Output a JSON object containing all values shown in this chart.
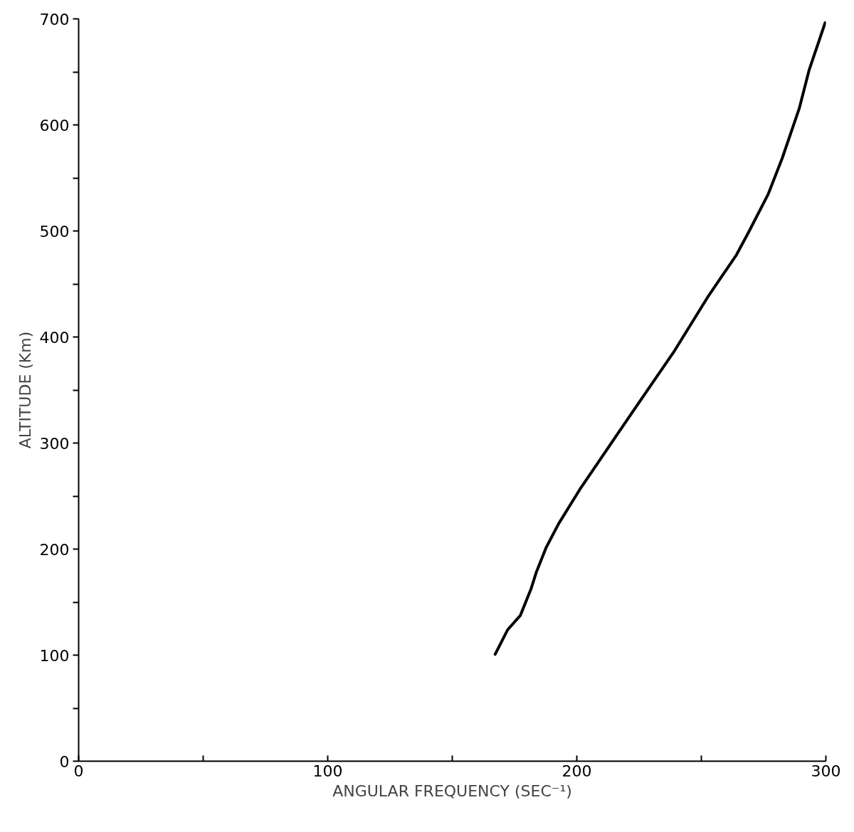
{
  "chart_data": {
    "type": "line",
    "xlabel": "ANGULAR FREQUENCY (SEC⁻¹)",
    "ylabel": "ALTITUDE (Km)",
    "xlim": [
      0,
      300
    ],
    "ylim": [
      0,
      700
    ],
    "xticks": [
      0,
      {
        "value": 50,
        "label": null
      },
      100,
      {
        "value": 150,
        "label": null
      },
      200,
      {
        "value": 250,
        "label": null
      },
      300
    ],
    "yticks": [
      0,
      {
        "value": 50,
        "label": null
      },
      100,
      {
        "value": 150,
        "label": null
      },
      200,
      {
        "value": 250,
        "label": null
      },
      300,
      {
        "value": 350,
        "label": null
      },
      400,
      {
        "value": 450,
        "label": null
      },
      500,
      {
        "value": 550,
        "label": null
      },
      600,
      {
        "value": 650,
        "label": null
      },
      700
    ],
    "grid": false,
    "marker": "none",
    "line_style": "solid",
    "series": [
      {
        "color": "#000000",
        "x": [
          167.2,
          172.2,
          177.3,
          181.7,
          183.8,
          187.7,
          192.7,
          201.6,
          217.3,
          223.2,
          239.2,
          252.9,
          264.1,
          268.9,
          276.9,
          282.5,
          289.3,
          293.3,
          299.7
        ],
        "values": [
          100.8,
          123.8,
          137.3,
          163,
          178.6,
          201.5,
          223.9,
          257.7,
          311.8,
          332.1,
          386.9,
          438.9,
          477.5,
          498.5,
          535,
          568.8,
          615.5,
          652,
          696.3
        ]
      }
    ]
  }
}
